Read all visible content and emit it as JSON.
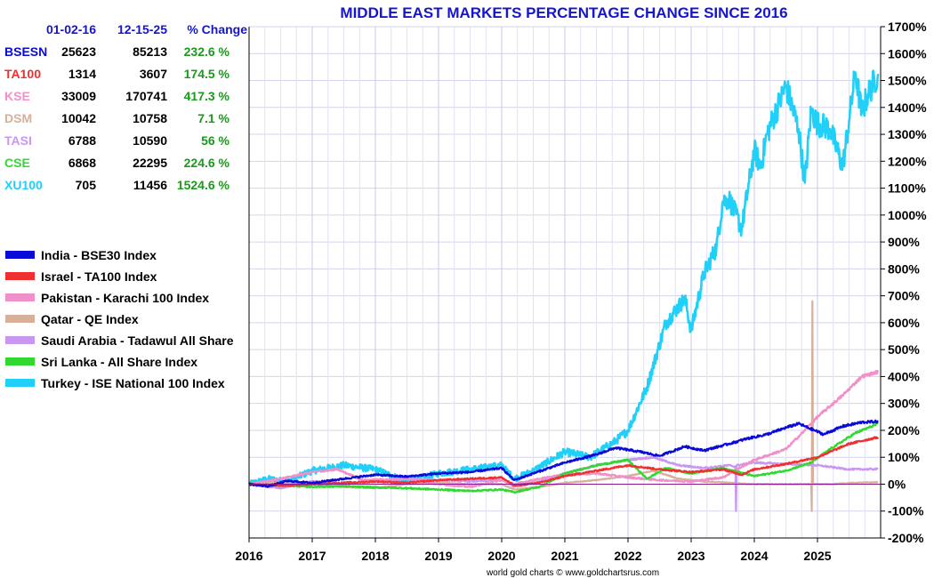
{
  "chart_data": {
    "type": "line",
    "title": "MIDDLE EAST MARKETS PERCENTAGE CHANGE SINCE 2016",
    "credit": "world gold charts © www.goldchartsrus.com",
    "xlabel": "",
    "ylabel": "",
    "xlim": [
      2016,
      2026
    ],
    "ylim": [
      -200,
      1700
    ],
    "grid": true,
    "legend_position": "left",
    "x_ticks": [
      "2016",
      "2017",
      "2018",
      "2019",
      "2020",
      "2021",
      "2022",
      "2023",
      "2024",
      "2025"
    ],
    "y_ticks": [
      "1700%",
      "1600%",
      "1500%",
      "1400%",
      "1300%",
      "1200%",
      "1100%",
      "1000%",
      "900%",
      "800%",
      "700%",
      "600%",
      "500%",
      "400%",
      "300%",
      "200%",
      "100%",
      "0%",
      "-100%",
      "-200%"
    ],
    "table": {
      "headers": [
        "01-02-16",
        "12-15-25",
        "% Change"
      ],
      "rows": [
        {
          "code": "BSESN",
          "start": "25623",
          "end": "85213",
          "change": "232.6 %",
          "color": "#0a0ad8"
        },
        {
          "code": "TA100",
          "start": "1314",
          "end": "3607",
          "change": "174.5 %",
          "color": "#f03030"
        },
        {
          "code": "KSE",
          "start": "33009",
          "end": "170741",
          "change": "417.3 %",
          "color": "#f090c8"
        },
        {
          "code": "DSM",
          "start": "10042",
          "end": "10758",
          "change": "7.1 %",
          "color": "#d8b09a"
        },
        {
          "code": "TASI",
          "start": "6788",
          "end": "10590",
          "change": "56 %",
          "color": "#c898f0"
        },
        {
          "code": "CSE",
          "start": "6868",
          "end": "22295",
          "change": "224.6 %",
          "color": "#30d830"
        },
        {
          "code": "XU100",
          "start": "705",
          "end": "11456",
          "change": "1524.6 %",
          "color": "#20d0f8"
        }
      ]
    },
    "series": [
      {
        "name": "India - BSE30 Index",
        "color": "#0a0ad8",
        "x": [
          2016.0,
          2016.3,
          2016.6,
          2017.0,
          2017.5,
          2018.0,
          2018.5,
          2019.0,
          2019.5,
          2020.0,
          2020.2,
          2020.5,
          2021.0,
          2021.5,
          2021.8,
          2022.2,
          2022.5,
          2022.9,
          2023.2,
          2023.6,
          2023.9,
          2024.2,
          2024.5,
          2024.7,
          2025.1,
          2025.4,
          2025.7,
          2025.96
        ],
        "y": [
          0,
          -8,
          12,
          5,
          20,
          35,
          28,
          40,
          45,
          60,
          15,
          40,
          80,
          110,
          135,
          120,
          105,
          140,
          125,
          150,
          170,
          185,
          210,
          225,
          185,
          215,
          230,
          232.6
        ]
      },
      {
        "name": "Israel - TA100 Index",
        "color": "#f03030",
        "x": [
          2016.0,
          2016.5,
          2017.0,
          2017.5,
          2018.0,
          2018.5,
          2019.0,
          2019.5,
          2020.0,
          2020.2,
          2020.6,
          2021.0,
          2021.5,
          2022.0,
          2022.5,
          2023.0,
          2023.5,
          2023.8,
          2024.0,
          2024.5,
          2025.0,
          2025.5,
          2025.96
        ],
        "y": [
          0,
          -5,
          0,
          5,
          10,
          5,
          15,
          20,
          25,
          -5,
          5,
          30,
          50,
          70,
          55,
          45,
          55,
          35,
          55,
          75,
          100,
          150,
          174.5
        ]
      },
      {
        "name": "Pakistan - Karachi 100 Index",
        "color": "#f090c8",
        "x": [
          2016.0,
          2016.5,
          2017.0,
          2017.4,
          2017.8,
          2018.5,
          2019.0,
          2019.5,
          2020.0,
          2020.2,
          2020.6,
          2021.0,
          2021.5,
          2022.0,
          2022.5,
          2023.0,
          2023.5,
          2024.0,
          2024.5,
          2024.8,
          2025.0,
          2025.4,
          2025.7,
          2025.96
        ],
        "y": [
          0,
          20,
          45,
          55,
          15,
          20,
          0,
          -10,
          15,
          0,
          20,
          35,
          40,
          25,
          15,
          10,
          25,
          90,
          130,
          200,
          250,
          330,
          400,
          417.3
        ]
      },
      {
        "name": "Qatar - QE Index",
        "color": "#d8b09a",
        "x": [
          2016.0,
          2016.5,
          2017.0,
          2017.5,
          2018.0,
          2018.5,
          2019.0,
          2019.5,
          2020.0,
          2020.2,
          2020.6,
          2021.0,
          2021.5,
          2022.0,
          2022.4,
          2022.8,
          2023.2,
          2023.6,
          2024.0,
          2024.5,
          2024.9,
          2024.91,
          2024.92,
          2024.93,
          2025.2,
          2025.6,
          2025.96
        ],
        "y": [
          0,
          5,
          0,
          -10,
          -15,
          0,
          5,
          0,
          0,
          -20,
          -10,
          5,
          15,
          30,
          50,
          20,
          10,
          5,
          0,
          0,
          0,
          -100,
          680,
          0,
          0,
          5,
          7.1
        ]
      },
      {
        "name": "Saudi Arabia - Tadawul All Share",
        "color": "#c898f0",
        "x": [
          2016.0,
          2016.5,
          2017.0,
          2017.5,
          2018.0,
          2018.5,
          2019.0,
          2019.5,
          2020.0,
          2020.2,
          2020.6,
          2021.0,
          2021.5,
          2022.0,
          2022.4,
          2022.8,
          2023.2,
          2023.6,
          2023.7,
          2023.71,
          2023.72,
          2024.0,
          2024.5,
          2025.0,
          2025.5,
          2025.96
        ],
        "y": [
          0,
          -15,
          10,
          0,
          10,
          20,
          15,
          10,
          15,
          -10,
          10,
          40,
          70,
          90,
          100,
          70,
          60,
          70,
          65,
          -100,
          70,
          80,
          75,
          70,
          55,
          56
        ]
      },
      {
        "name": "Sri Lanka - All Share Index",
        "color": "#30d830",
        "x": [
          2016.0,
          2016.5,
          2017.0,
          2017.5,
          2018.0,
          2018.5,
          2019.0,
          2019.5,
          2020.0,
          2020.2,
          2020.6,
          2021.0,
          2021.5,
          2022.0,
          2022.3,
          2022.6,
          2023.0,
          2023.5,
          2024.0,
          2024.5,
          2024.9,
          2025.2,
          2025.6,
          2025.96
        ],
        "y": [
          0,
          -5,
          -10,
          -8,
          -12,
          -15,
          -20,
          -25,
          -20,
          -30,
          -10,
          40,
          70,
          90,
          20,
          60,
          40,
          60,
          30,
          50,
          80,
          130,
          190,
          224.6
        ]
      },
      {
        "name": "Turkey - ISE National 100 Index",
        "color": "#20d0f8",
        "x": [
          2016.0,
          2016.3,
          2016.6,
          2017.0,
          2017.5,
          2018.0,
          2018.5,
          2019.0,
          2019.5,
          2020.0,
          2020.2,
          2020.5,
          2021.0,
          2021.4,
          2021.8,
          2022.0,
          2022.3,
          2022.6,
          2022.9,
          2023.0,
          2023.2,
          2023.4,
          2023.5,
          2023.6,
          2023.8,
          2024.0,
          2024.1,
          2024.2,
          2024.4,
          2024.5,
          2024.7,
          2024.8,
          2024.9,
          2025.0,
          2025.2,
          2025.4,
          2025.5,
          2025.6,
          2025.7,
          2025.8,
          2025.96
        ],
        "y": [
          0,
          20,
          10,
          50,
          70,
          55,
          10,
          40,
          55,
          70,
          20,
          50,
          120,
          100,
          160,
          200,
          360,
          600,
          690,
          570,
          780,
          880,
          1050,
          1060,
          950,
          1240,
          1180,
          1300,
          1420,
          1480,
          1320,
          1120,
          1390,
          1340,
          1320,
          1180,
          1350,
          1530,
          1380,
          1450,
          1524.6
        ]
      }
    ]
  }
}
